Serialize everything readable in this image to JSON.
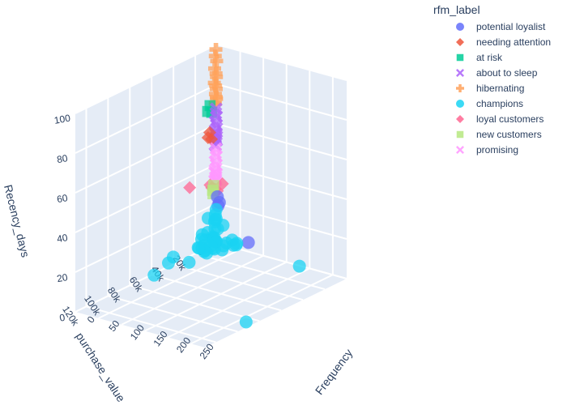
{
  "chart_data": {
    "type": "scatter3d",
    "legend": {
      "title": "rfm_label",
      "placement": "top-right",
      "entries": [
        {
          "label": "potential loyalist",
          "color": "#636efa",
          "symbol": "circle"
        },
        {
          "label": "needing attention",
          "color": "#ef553b",
          "symbol": "diamond"
        },
        {
          "label": "at risk",
          "color": "#00cc96",
          "symbol": "square"
        },
        {
          "label": "about to sleep",
          "color": "#ab63fa",
          "symbol": "x"
        },
        {
          "label": "hibernating",
          "color": "#ffa15a",
          "symbol": "cross"
        },
        {
          "label": "champions",
          "color": "#19d3f3",
          "symbol": "circle"
        },
        {
          "label": "loyal customers",
          "color": "#ff6692",
          "symbol": "diamond"
        },
        {
          "label": "new customers",
          "color": "#b6e880",
          "symbol": "square"
        },
        {
          "label": "promising",
          "color": "#ff97ff",
          "symbol": "x"
        }
      ]
    },
    "axes": {
      "x": {
        "title": "Frequency",
        "range": [
          0,
          280
        ],
        "ticks": [
          "0",
          "50",
          "100",
          "150",
          "200",
          "250"
        ],
        "tick_values": [
          0,
          50,
          100,
          150,
          200,
          250
        ]
      },
      "y": {
        "title": "purchase_value",
        "range": [
          0,
          130000
        ],
        "ticks": [
          "0",
          "20k",
          "40k",
          "60k",
          "80k",
          "100k",
          "120k"
        ],
        "tick_values": [
          0,
          20000,
          40000,
          60000,
          80000,
          100000,
          120000
        ]
      },
      "z": {
        "title": "Recency_days",
        "range": [
          0,
          100
        ],
        "ticks": [
          "0",
          "20",
          "40",
          "60",
          "80",
          "100"
        ],
        "tick_values": [
          0,
          20,
          40,
          60,
          80,
          100
        ]
      }
    },
    "grid": true,
    "series": [
      {
        "name": "hibernating",
        "color": "#ffa15a",
        "symbol": "cross",
        "points": [
          [
            1,
            1500,
            98
          ],
          [
            2,
            2500,
            95
          ],
          [
            1,
            800,
            92
          ],
          [
            3,
            3500,
            89
          ],
          [
            2,
            1800,
            86
          ],
          [
            1,
            1000,
            84
          ],
          [
            4,
            4200,
            82
          ],
          [
            2,
            2200,
            80
          ],
          [
            1,
            1200,
            78
          ],
          [
            3,
            2800,
            76
          ],
          [
            2,
            1600,
            74
          ],
          [
            1,
            900,
            73
          ],
          [
            5,
            3800,
            72
          ],
          [
            2,
            2600,
            71
          ]
        ]
      },
      {
        "name": "at risk",
        "color": "#00cc96",
        "symbol": "square",
        "points": [
          [
            6,
            9000,
            72
          ],
          [
            8,
            12000,
            70
          ],
          [
            5,
            7000,
            68
          ]
        ]
      },
      {
        "name": "about to sleep",
        "color": "#ab63fa",
        "symbol": "x",
        "points": [
          [
            1,
            1200,
            68
          ],
          [
            2,
            2000,
            66
          ],
          [
            1,
            900,
            64
          ],
          [
            3,
            3000,
            62
          ],
          [
            2,
            1500,
            60
          ],
          [
            1,
            700,
            58
          ],
          [
            4,
            3600,
            57
          ],
          [
            2,
            2400,
            56
          ],
          [
            1,
            1100,
            55
          ],
          [
            3,
            2700,
            54
          ],
          [
            2,
            1900,
            53
          ],
          [
            1,
            800,
            52
          ],
          [
            5,
            4100,
            51
          ],
          [
            2,
            2300,
            50
          ]
        ]
      },
      {
        "name": "needing attention",
        "color": "#ef553b",
        "symbol": "diamond",
        "points": [
          [
            3,
            8000,
            58
          ],
          [
            4,
            10000,
            56
          ],
          [
            2,
            6000,
            54
          ]
        ]
      },
      {
        "name": "promising",
        "color": "#ff97ff",
        "symbol": "x",
        "points": [
          [
            1,
            1500,
            48
          ],
          [
            2,
            2200,
            46
          ],
          [
            1,
            1000,
            44
          ],
          [
            3,
            3200,
            42
          ],
          [
            2,
            1800,
            40
          ],
          [
            1,
            1300,
            38
          ],
          [
            4,
            4000,
            37
          ],
          [
            2,
            2600,
            36
          ],
          [
            1,
            900,
            35
          ],
          [
            3,
            2900,
            34
          ],
          [
            2,
            2000,
            33
          ],
          [
            1,
            1400,
            32
          ]
        ]
      },
      {
        "name": "loyal customers",
        "color": "#ff6692",
        "symbol": "diamond",
        "points": [
          [
            2,
            26000,
            35
          ],
          [
            6,
            9000,
            32
          ],
          [
            14,
            1000,
            31
          ],
          [
            8,
            5000,
            29
          ],
          [
            5,
            7000,
            30
          ],
          [
            10,
            4000,
            28
          ]
        ]
      },
      {
        "name": "new customers",
        "color": "#b6e880",
        "symbol": "square",
        "points": [
          [
            1,
            3500,
            30
          ],
          [
            2,
            5000,
            28
          ],
          [
            1,
            4200,
            26
          ]
        ]
      },
      {
        "name": "potential loyalist",
        "color": "#636efa",
        "symbol": "circle",
        "points": [
          [
            70,
            1000,
            5
          ],
          [
            10,
            4000,
            25
          ],
          [
            12,
            3000,
            22
          ],
          [
            8,
            2500,
            20
          ]
        ]
      },
      {
        "name": "champions",
        "color": "#19d3f3",
        "symbol": "circle",
        "points": [
          [
            5,
            3000,
            18
          ],
          [
            8,
            5000,
            16
          ],
          [
            10,
            6000,
            14
          ],
          [
            4,
            4000,
            12
          ],
          [
            12,
            7000,
            10
          ],
          [
            6,
            2000,
            8
          ],
          [
            15,
            9000,
            6
          ],
          [
            9,
            8000,
            5
          ],
          [
            7,
            6500,
            4
          ],
          [
            11,
            5500,
            3
          ],
          [
            3,
            3500,
            2
          ],
          [
            14,
            10000,
            1
          ],
          [
            2,
            9000,
            15
          ],
          [
            20,
            3000,
            11
          ],
          [
            8,
            12000,
            9
          ],
          [
            16,
            11000,
            7
          ],
          [
            4,
            2500,
            13
          ],
          [
            18,
            8500,
            4
          ],
          [
            25,
            13000,
            2
          ],
          [
            6,
            14000,
            3
          ],
          [
            10,
            15000,
            1
          ],
          [
            3,
            12000,
            5
          ],
          [
            30,
            4000,
            3
          ],
          [
            5,
            16000,
            2
          ],
          [
            1,
            14000,
            8
          ],
          [
            2,
            15000,
            6
          ],
          [
            40,
            2000,
            2
          ],
          [
            35,
            1000,
            4
          ],
          [
            60,
            8000,
            5
          ],
          [
            45,
            1000,
            3
          ],
          [
            28,
            6000,
            2
          ],
          [
            32,
            9000,
            1
          ],
          [
            22,
            15000,
            4
          ],
          [
            12,
            17000,
            1
          ],
          [
            20,
            18000,
            1
          ],
          [
            1,
            17000,
            2
          ],
          [
            4,
            19000,
            3
          ],
          [
            22,
            35000,
            1
          ],
          [
            2,
            41000,
            4
          ],
          [
            1,
            45000,
            2
          ],
          [
            10,
            62000,
            1
          ],
          [
            185,
            3000,
            1
          ],
          [
            270,
            88000,
            1
          ]
        ]
      }
    ]
  }
}
